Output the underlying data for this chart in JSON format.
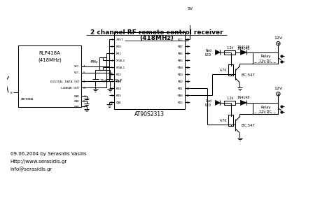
{
  "title_line1": "2 channel RF remote control receiver",
  "title_line2": "(418MHz)",
  "rlp_label1": "RLP418A",
  "rlp_label2": "(418MHz)",
  "ic_label": "AT90S2313",
  "ic_pins_left": [
    "/RST",
    "PD0",
    "PD1",
    "XTAL2",
    "XTAL1",
    "PD2",
    "PD3",
    "PD4",
    "PD5",
    "GND"
  ],
  "ic_pins_left_nums": [
    "1",
    "2",
    "3",
    "4",
    "5",
    "6",
    "7",
    "8",
    "9",
    "10"
  ],
  "ic_pins_right": [
    "VCC",
    "PB7",
    "PB6",
    "PB5",
    "PB4",
    "PB3",
    "PB2",
    "PB1",
    "PB0",
    "PD6"
  ],
  "ic_pins_right_nums": [
    "20",
    "19",
    "18",
    "17",
    "16",
    "15",
    "14",
    "13",
    "12",
    "11"
  ],
  "crystal_label": "4MHz",
  "cap_label1": "22pF",
  "cap_label2": "22pF",
  "relay_label1": "Relay",
  "relay_label2": "12v DC",
  "transistor_label": "BC 547",
  "diode_label": "1N4148",
  "r1_label": "1.2k",
  "r2_label": "4.7K",
  "led_label_top": "Red",
  "led_label_bot": "LED",
  "v5_label": "5V",
  "v12_label": "12V",
  "footer_line1": "09.06.2004 by Serasidis Vasilis",
  "footer_line2": "Http://www.serasidis.gr",
  "footer_line3": "info@serasidis.gr",
  "bg_color": "#ffffff",
  "line_color": "#000000",
  "text_color": "#000000"
}
